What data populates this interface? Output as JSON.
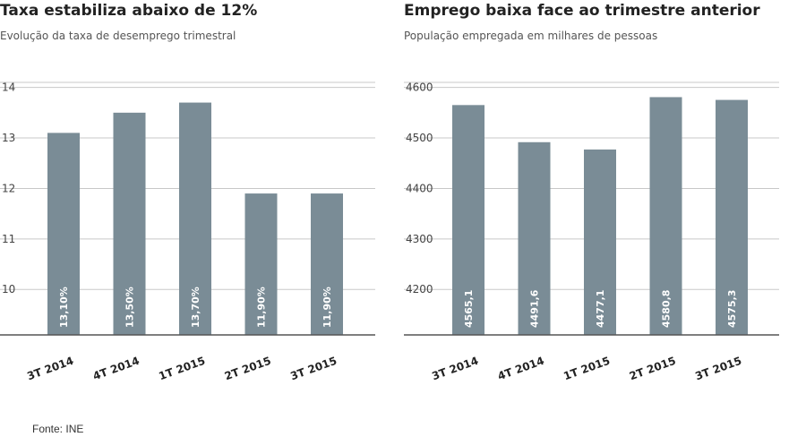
{
  "source": "Fonte: INE",
  "chart_data": [
    {
      "type": "bar",
      "title": "Taxa estabiliza abaixo de 12%",
      "subtitle": "Evolução da taxa de desemprego trimestral",
      "categories": [
        "3T 2014",
        "4T 2014",
        "1T 2015",
        "2T 2015",
        "3T 2015"
      ],
      "values": [
        13.1,
        13.5,
        13.7,
        11.9,
        11.9
      ],
      "value_labels": [
        "13,10%",
        "13,50%",
        "13,70%",
        "11,90%",
        "11,90%"
      ],
      "yticks": [
        10,
        11,
        12,
        13,
        14
      ],
      "ylim": [
        9.1,
        14.1
      ],
      "grid": true,
      "bar_color": "#7a8c96"
    },
    {
      "type": "bar",
      "title": "Emprego baixa face ao trimestre anterior",
      "subtitle": "População empregada em milhares de pessoas",
      "categories": [
        "3T 2014",
        "4T 2014",
        "1T 2015",
        "2T 2015",
        "3T 2015"
      ],
      "values": [
        4565.1,
        4491.6,
        4477.1,
        4580.8,
        4575.3
      ],
      "value_labels": [
        "4565,1",
        "4491,6",
        "4477,1",
        "4580,8",
        "4575,3"
      ],
      "yticks": [
        4200,
        4300,
        4400,
        4500,
        4600
      ],
      "ylim": [
        4110,
        4610
      ],
      "grid": true,
      "bar_color": "#7a8c96"
    }
  ]
}
